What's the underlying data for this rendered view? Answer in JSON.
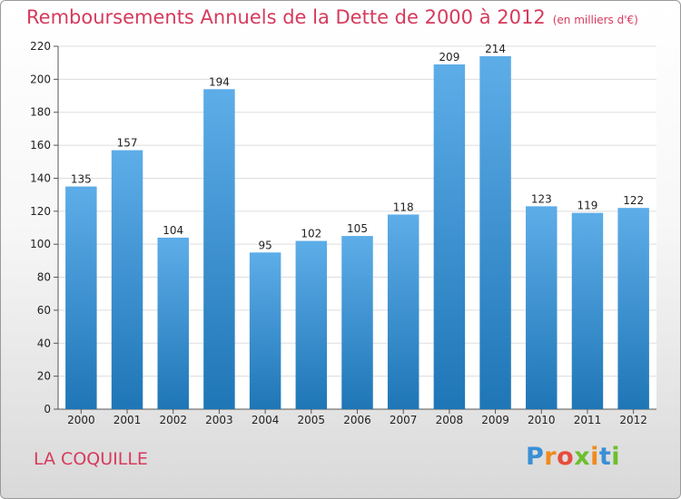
{
  "colors": {
    "title": "#d63a5c",
    "bar_light": "#5dade8",
    "bar_dark": "#1f76b6",
    "axis": "#555555",
    "grid": "#dddddd"
  },
  "chart_data": {
    "type": "bar",
    "title": "Remboursements Annuels de la Dette de 2000 à 2012",
    "unit": "(en milliers d'€)",
    "categories": [
      "2000",
      "2001",
      "2002",
      "2003",
      "2004",
      "2005",
      "2006",
      "2007",
      "2008",
      "2009",
      "2010",
      "2011",
      "2012"
    ],
    "values": [
      135,
      157,
      104,
      194,
      95,
      102,
      105,
      118,
      209,
      214,
      123,
      119,
      122
    ],
    "data_labels": [
      "135",
      "157",
      "104",
      "194",
      "95",
      "102",
      "105",
      "118",
      "209",
      "214",
      "123",
      "119",
      "122"
    ],
    "ylim": [
      0,
      220
    ],
    "yticks": [
      0,
      20,
      40,
      60,
      80,
      100,
      120,
      140,
      160,
      180,
      200,
      220
    ],
    "grid": true,
    "legend": "none"
  },
  "entity_name": "LA COQUILLE",
  "logo": {
    "letters": [
      "P",
      "r",
      "o",
      "x",
      "i",
      "t",
      "i"
    ],
    "colors": [
      "#3a8fd6",
      "#f08a1e",
      "#e84c3d",
      "#6cbf2e",
      "#f08a1e",
      "#3a8fd6",
      "#6cbf2e"
    ]
  }
}
